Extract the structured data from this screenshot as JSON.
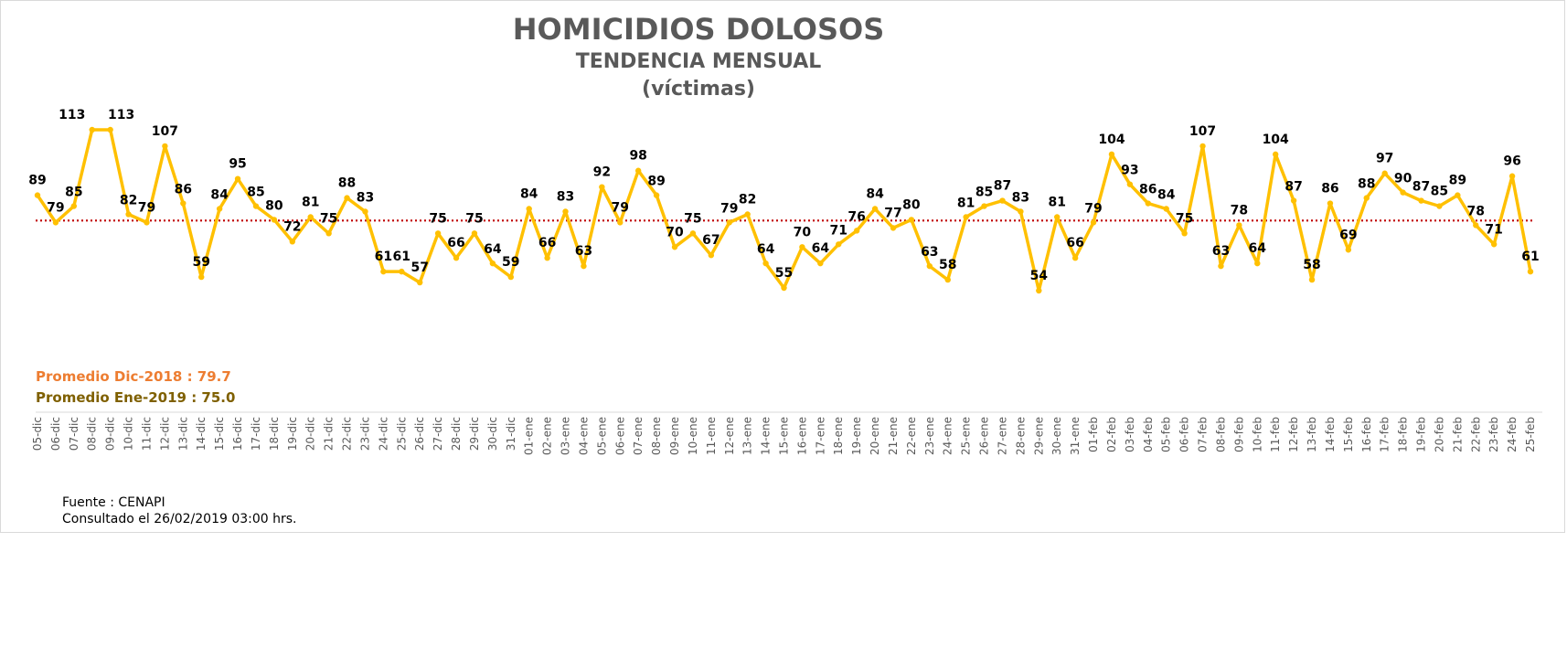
{
  "header": {
    "title": "HOMICIDIOS DOLOSOS",
    "subtitle": "TENDENCIA MENSUAL",
    "unit": "(víctimas)"
  },
  "averages": {
    "dic": "Promedio Dic-2018  : 79.7",
    "ene": "Promedio Ene-2019 : 75.0"
  },
  "footer": {
    "source": "Fuente : CENAPI",
    "consulted": "Consultado el 26/02/2019  03:00 hrs."
  },
  "colors": {
    "line": "#ffc000",
    "average_line": "#c00000",
    "title": "#595959",
    "avg_dic": "#ed7d31",
    "avg_ene": "#7f6000"
  },
  "chart_data": {
    "type": "line",
    "title": "HOMICIDIOS DOLOSOS",
    "subtitle": "TENDENCIA MENSUAL",
    "ylabel": "",
    "xlabel": "",
    "ylim": [
      0,
      125
    ],
    "grid": false,
    "categories": [
      "05-dic",
      "06-dic",
      "07-dic",
      "08-dic",
      "09-dic",
      "10-dic",
      "11-dic",
      "12-dic",
      "13-dic",
      "14-dic",
      "15-dic",
      "16-dic",
      "17-dic",
      "18-dic",
      "19-dic",
      "20-dic",
      "21-dic",
      "22-dic",
      "23-dic",
      "24-dic",
      "25-dic",
      "26-dic",
      "27-dic",
      "28-dic",
      "29-dic",
      "30-dic",
      "31-dic",
      "01-ene",
      "02-ene",
      "03-ene",
      "04-ene",
      "05-ene",
      "06-ene",
      "07-ene",
      "08-ene",
      "09-ene",
      "10-ene",
      "11-ene",
      "12-ene",
      "13-ene",
      "14-ene",
      "15-ene",
      "16-ene",
      "17-ene",
      "18-ene",
      "19-ene",
      "20-ene",
      "21-ene",
      "22-ene",
      "23-ene",
      "24-ene",
      "25-ene",
      "26-ene",
      "27-ene",
      "28-ene",
      "29-ene",
      "30-ene",
      "31-ene",
      "01-feb",
      "02-feb",
      "03-feb",
      "04-feb",
      "05-feb",
      "06-feb",
      "07-feb",
      "08-feb",
      "09-feb",
      "10-feb",
      "11-feb",
      "12-feb",
      "13-feb",
      "14-feb",
      "15-feb",
      "16-feb",
      "17-feb",
      "18-feb",
      "19-feb",
      "20-feb",
      "21-feb",
      "22-feb",
      "23-feb",
      "24-feb",
      "25-feb"
    ],
    "series": [
      {
        "values": [
          89,
          79,
          85,
          113,
          113,
          82,
          79,
          107,
          86,
          59,
          84,
          95,
          85,
          80,
          72,
          81,
          75,
          88,
          83,
          61,
          61,
          57,
          75,
          66,
          75,
          64,
          59,
          84,
          66,
          83,
          63,
          92,
          79,
          98,
          89,
          70,
          75,
          67,
          79,
          82,
          64,
          55,
          70,
          64,
          71,
          76,
          84,
          77,
          80,
          63,
          58,
          81,
          85,
          87,
          83,
          54,
          81,
          66,
          79,
          104,
          93,
          86,
          84,
          75,
          107,
          63,
          78,
          64,
          104,
          87,
          58,
          86,
          69,
          88,
          97,
          90,
          87,
          85,
          89,
          78,
          71,
          96,
          61
        ]
      }
    ],
    "average": 79.7
  }
}
